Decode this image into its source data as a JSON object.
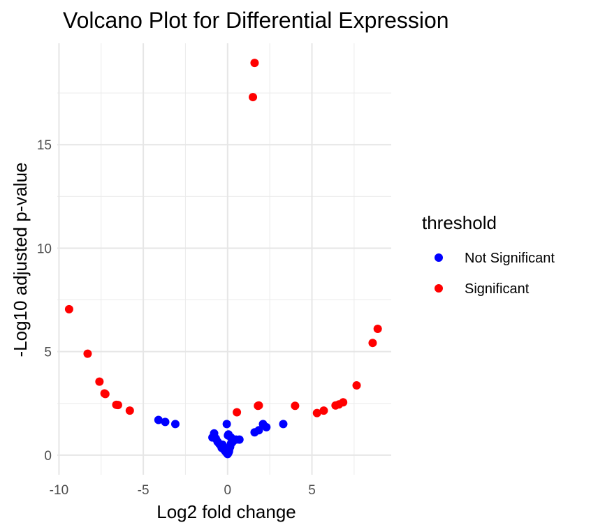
{
  "chart_data": {
    "type": "scatter",
    "title": "Volcano Plot for Differential Expression",
    "xlabel": "Log2 fold change",
    "ylabel": "-Log10 adjusted p-value",
    "xlim": [
      -10.1,
      9.7
    ],
    "ylim": [
      -0.95,
      19.9
    ],
    "x_ticks": [
      -10,
      -5,
      0,
      5
    ],
    "x_tick_labels": [
      "-10",
      "-5",
      "0",
      "5"
    ],
    "y_ticks": [
      0,
      5,
      10,
      15
    ],
    "y_tick_labels": [
      "0",
      "5",
      "10",
      "15"
    ],
    "grid": true,
    "legend_position": "right",
    "legend_title": "threshold",
    "series": [
      {
        "name": "Not Significant",
        "color": "#0000ff",
        "x": [
          -4.1,
          -3.7,
          -3.1,
          -0.8,
          -0.9,
          -0.7,
          -0.6,
          -0.5,
          -0.4,
          -0.35,
          -0.3,
          -0.2,
          -0.15,
          -0.1,
          -0.05,
          0.0,
          0.02,
          0.05,
          0.08,
          0.1,
          0.15,
          0.2,
          0.25,
          0.3,
          0.05,
          0.2,
          0.5,
          0.7,
          -0.05,
          0.02,
          1.6,
          1.85,
          2.1,
          2.3,
          3.3
        ],
        "y": [
          1.7,
          1.6,
          1.5,
          1.05,
          0.85,
          0.8,
          0.65,
          0.55,
          0.45,
          0.35,
          0.5,
          0.25,
          0.2,
          0.15,
          0.1,
          0.05,
          0.08,
          0.12,
          0.18,
          0.3,
          0.4,
          0.55,
          0.6,
          0.65,
          1.0,
          0.85,
          0.75,
          0.75,
          1.5,
          0.95,
          1.1,
          1.2,
          1.5,
          1.35,
          1.5
        ]
      },
      {
        "name": "Significant",
        "color": "#ff0000",
        "x": [
          -9.4,
          -8.3,
          -7.6,
          -7.3,
          -7.25,
          -6.6,
          -6.5,
          -5.8,
          0.55,
          1.5,
          1.6,
          1.8,
          1.85,
          4.0,
          5.3,
          5.7,
          6.4,
          6.6,
          6.85,
          7.65,
          8.6,
          8.9
        ],
        "y": [
          7.05,
          4.9,
          3.55,
          2.98,
          2.95,
          2.43,
          2.42,
          2.15,
          2.07,
          17.3,
          18.95,
          2.38,
          2.4,
          2.38,
          2.03,
          2.15,
          2.4,
          2.45,
          2.55,
          3.37,
          5.42,
          6.1
        ]
      }
    ]
  }
}
